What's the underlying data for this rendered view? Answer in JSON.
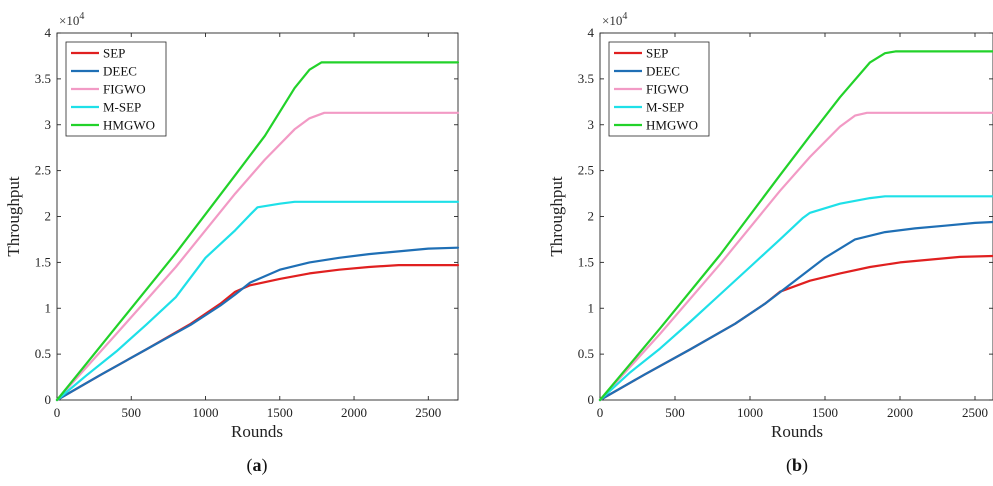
{
  "chart_data": [
    {
      "type": "line",
      "panel_label_open": "(",
      "panel_label_letter": "a",
      "panel_label_close": ")",
      "xlabel": "Rounds",
      "ylabel": "Throughput",
      "exponent_label": "×10",
      "exponent_power": "4",
      "xlim": [
        0,
        2700
      ],
      "ylim": [
        0,
        4
      ],
      "xticks": [
        0,
        500,
        1000,
        1500,
        2000,
        2500
      ],
      "xtick_labels": [
        "0",
        "500",
        "1000",
        "1500",
        "2000",
        "2500"
      ],
      "yticks": [
        0,
        0.5,
        1,
        1.5,
        2,
        2.5,
        3,
        3.5,
        4
      ],
      "ytick_labels": [
        "0",
        "0.5",
        "1",
        "1.5",
        "2",
        "2.5",
        "3",
        "3.5",
        "4"
      ],
      "legend_position": "top-left",
      "series": [
        {
          "name": "SEP",
          "color": "#e02020",
          "x": [
            0,
            300,
            600,
            900,
            1100,
            1200,
            1300,
            1500,
            1700,
            1900,
            2100,
            2300,
            2500,
            2700
          ],
          "y": [
            0,
            0.28,
            0.55,
            0.83,
            1.05,
            1.18,
            1.25,
            1.32,
            1.38,
            1.42,
            1.45,
            1.47,
            1.47,
            1.47
          ]
        },
        {
          "name": "DEEC",
          "color": "#1f6fb5",
          "x": [
            0,
            300,
            600,
            900,
            1100,
            1200,
            1300,
            1500,
            1700,
            1900,
            2100,
            2300,
            2500,
            2700
          ],
          "y": [
            0,
            0.28,
            0.55,
            0.82,
            1.03,
            1.15,
            1.28,
            1.42,
            1.5,
            1.55,
            1.59,
            1.62,
            1.65,
            1.66
          ]
        },
        {
          "name": "FIGWO",
          "color": "#f29ac5",
          "x": [
            0,
            400,
            800,
            1200,
            1400,
            1600,
            1700,
            1800,
            1850,
            2000,
            2400,
            2700
          ],
          "y": [
            0,
            0.72,
            1.45,
            2.25,
            2.62,
            2.95,
            3.07,
            3.13,
            3.13,
            3.13,
            3.13,
            3.13
          ]
        },
        {
          "name": "M-SEP",
          "color": "#1ee0e8",
          "x": [
            0,
            200,
            400,
            600,
            800,
            1000,
            1200,
            1300,
            1350,
            1500,
            1600,
            1800,
            2200,
            2700
          ],
          "y": [
            0,
            0.27,
            0.53,
            0.82,
            1.12,
            1.55,
            1.85,
            2.02,
            2.1,
            2.14,
            2.16,
            2.16,
            2.16,
            2.16
          ]
        },
        {
          "name": "HMGWO",
          "color": "#22d22a",
          "x": [
            0,
            400,
            800,
            1200,
            1400,
            1600,
            1700,
            1780,
            1830,
            2000,
            2400,
            2700
          ],
          "y": [
            0,
            0.8,
            1.6,
            2.45,
            2.88,
            3.4,
            3.6,
            3.68,
            3.68,
            3.68,
            3.68,
            3.68
          ]
        }
      ]
    },
    {
      "type": "line",
      "panel_label_open": "(",
      "panel_label_letter": "b",
      "panel_label_close": ")",
      "xlabel": "Rounds",
      "ylabel": "Throughput",
      "exponent_label": "×10",
      "exponent_power": "4",
      "xlim": [
        0,
        2620
      ],
      "ylim": [
        0,
        4
      ],
      "xticks": [
        0,
        500,
        1000,
        1500,
        2000,
        2500
      ],
      "xtick_labels": [
        "0",
        "500",
        "1000",
        "1500",
        "2000",
        "2500"
      ],
      "yticks": [
        0,
        0.5,
        1,
        1.5,
        2,
        2.5,
        3,
        3.5,
        4
      ],
      "ytick_labels": [
        "0",
        "0.5",
        "1",
        "1.5",
        "2",
        "2.5",
        "3",
        "3.5",
        "4"
      ],
      "legend_position": "top-left",
      "series": [
        {
          "name": "SEP",
          "color": "#e02020",
          "x": [
            0,
            300,
            600,
            900,
            1100,
            1200,
            1400,
            1600,
            1800,
            2000,
            2200,
            2400,
            2620
          ],
          "y": [
            0,
            0.28,
            0.55,
            0.83,
            1.05,
            1.18,
            1.3,
            1.38,
            1.45,
            1.5,
            1.53,
            1.56,
            1.57
          ]
        },
        {
          "name": "DEEC",
          "color": "#1f6fb5",
          "x": [
            0,
            300,
            600,
            900,
            1100,
            1300,
            1500,
            1700,
            1900,
            2100,
            2300,
            2500,
            2620
          ],
          "y": [
            0,
            0.28,
            0.55,
            0.83,
            1.05,
            1.3,
            1.55,
            1.75,
            1.83,
            1.87,
            1.9,
            1.93,
            1.94
          ]
        },
        {
          "name": "FIGWO",
          "color": "#f29ac5",
          "x": [
            0,
            400,
            800,
            1200,
            1400,
            1600,
            1700,
            1780,
            1850,
            2000,
            2400,
            2620
          ],
          "y": [
            0,
            0.72,
            1.48,
            2.28,
            2.65,
            2.98,
            3.1,
            3.13,
            3.13,
            3.13,
            3.13,
            3.13
          ]
        },
        {
          "name": "M-SEP",
          "color": "#1ee0e8",
          "x": [
            0,
            200,
            400,
            600,
            800,
            1000,
            1200,
            1350,
            1400,
            1600,
            1800,
            1900,
            2200,
            2620
          ],
          "y": [
            0,
            0.3,
            0.56,
            0.85,
            1.15,
            1.45,
            1.75,
            1.98,
            2.04,
            2.14,
            2.2,
            2.22,
            2.22,
            2.22
          ]
        },
        {
          "name": "HMGWO",
          "color": "#22d22a",
          "x": [
            0,
            400,
            800,
            1200,
            1400,
            1600,
            1800,
            1900,
            1970,
            2100,
            2400,
            2620
          ],
          "y": [
            0,
            0.78,
            1.58,
            2.45,
            2.88,
            3.3,
            3.68,
            3.78,
            3.8,
            3.8,
            3.8,
            3.8
          ]
        }
      ]
    }
  ]
}
